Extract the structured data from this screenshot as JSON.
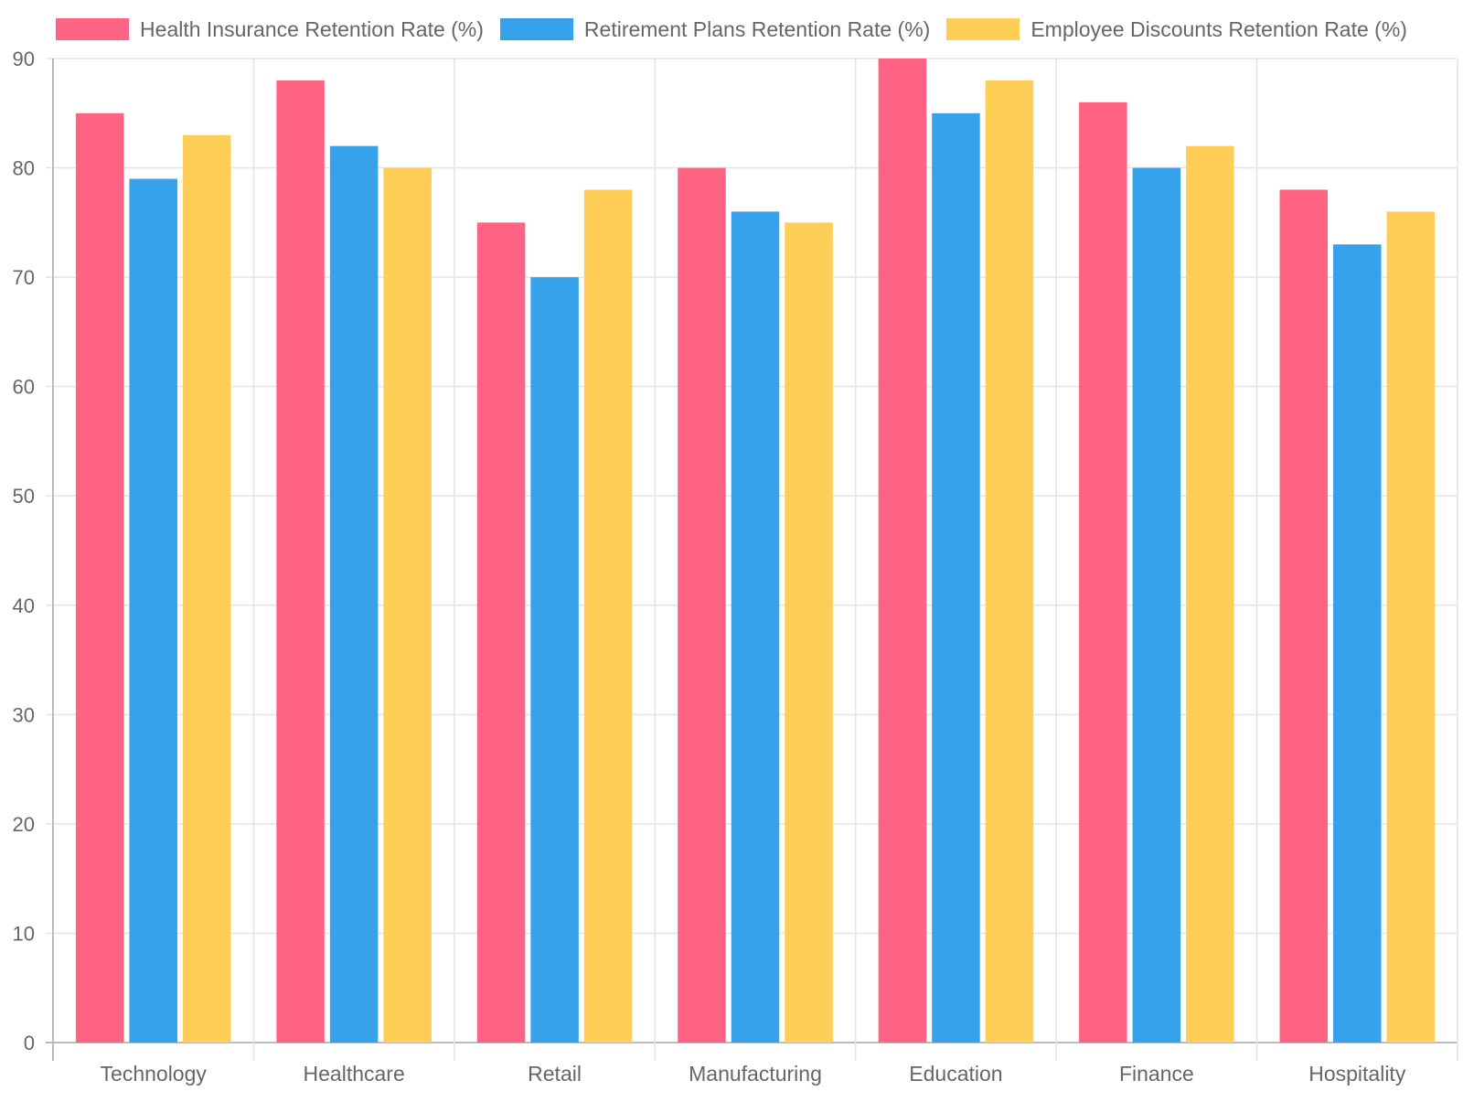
{
  "chart_data": {
    "type": "bar",
    "categories": [
      "Technology",
      "Healthcare",
      "Retail",
      "Manufacturing",
      "Education",
      "Finance",
      "Hospitality"
    ],
    "series": [
      {
        "name": "Health Insurance Retention Rate (%)",
        "color": "#ff6384",
        "values": [
          85,
          88,
          75,
          80,
          90,
          86,
          78
        ]
      },
      {
        "name": "Retirement Plans Retention Rate (%)",
        "color": "#36a2eb",
        "values": [
          79,
          82,
          70,
          76,
          85,
          80,
          73
        ]
      },
      {
        "name": "Employee Discounts Retention Rate (%)",
        "color": "#ffce56",
        "values": [
          83,
          80,
          78,
          75,
          88,
          82,
          76
        ]
      }
    ],
    "ylim": [
      0,
      90
    ],
    "yticks": [
      0,
      10,
      20,
      30,
      40,
      50,
      60,
      70,
      80,
      90
    ],
    "grid": true,
    "legend_position": "top"
  }
}
